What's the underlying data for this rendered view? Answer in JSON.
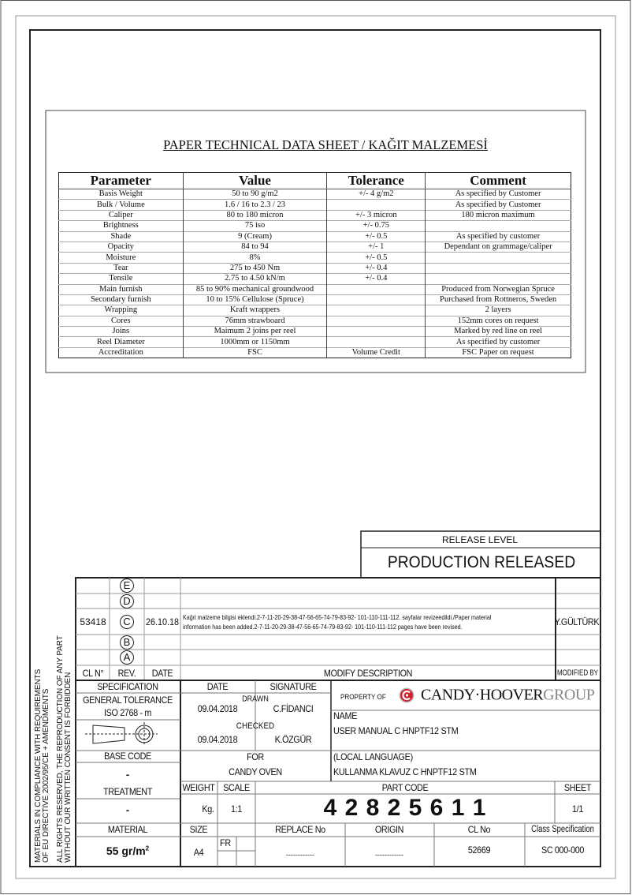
{
  "sheet": {
    "title": "PAPER TECHNICAL DATA SHEET / KAĞIT MALZEMESİ",
    "columns": [
      "Parameter",
      "Value",
      "Tolerance",
      "Comment"
    ],
    "rows": [
      [
        "Basis Weight",
        "50 to 90 g/m2",
        "+/- 4 g/m2",
        "As specified by Customer"
      ],
      [
        "Bulk / Volume",
        "1.6 / 16 to 2.3 / 23",
        "",
        "As specified by Customer"
      ],
      [
        "Caliper",
        "80 to 180 micron",
        "+/- 3 micron",
        "180 micron maximum"
      ],
      [
        "Brightness",
        "75 iso",
        "+/- 0.75",
        ""
      ],
      [
        "Shade",
        "9 (Cream)",
        "+/- 0.5",
        "As specified by customer"
      ],
      [
        "Opacity",
        "84 to 94",
        "+/- 1",
        "Dependant on grammage/caliper"
      ],
      [
        "Moisture",
        "8%",
        "+/- 0.5",
        ""
      ],
      [
        "Tear",
        "275 to 450 Nm",
        "+/- 0.4",
        ""
      ],
      [
        "Tensile",
        "2.75 to 4.50 kN/m",
        "+/- 0.4",
        ""
      ],
      [
        "Main furnish",
        "85 to 90% mechanical groundwood",
        "",
        "Produced from Norwegian Spruce"
      ],
      [
        "Secondary furnish",
        "10 to 15% Cellulose (Spruce)",
        "",
        "Purchased from Rottneros, Sweden"
      ],
      [
        "Wrapping",
        "Kraft wrappers",
        "",
        "2 layers"
      ],
      [
        "Cores",
        "76mm strawboard",
        "",
        "152mm cores on request"
      ],
      [
        "Joins",
        "Maimum 2 joins per reel",
        "",
        "Marked by red line on reel"
      ],
      [
        "Reel Diameter",
        "1000mm or 1150mm",
        "",
        "As specified by customer"
      ],
      [
        "Accreditation",
        "FSC",
        "Volume Credit",
        "FSC Paper on request"
      ]
    ]
  },
  "release": {
    "label": "RELEASE LEVEL",
    "value": "PRODUCTION RELEASED"
  },
  "revisions": {
    "letters": [
      "E",
      "D",
      "C",
      "B",
      "A"
    ],
    "entry": {
      "cl_no": "53418",
      "date": "26.10.18",
      "description_line1": "Kağıt malzeme bilgisi eklendi.2-7-11-20-29-38-47-56-65-74-79-83-92- 101-110-111-112. sayfalar revizeedildi./Paper material",
      "description_line2": "information has been added.2-7-11-20-29-38-47-56-65-74-79-83-92- 101-110-111-112 pages have been revised.",
      "modified_by": "Y.GÜLTÜRK"
    },
    "headers": {
      "cl_no": "CL N°",
      "rev": "REV.",
      "date": "DATE",
      "description": "MODIFY DESCRIPTION",
      "modified_by": "MODIFIED BY"
    }
  },
  "title_block": {
    "specification_label": "SPECIFICATION",
    "general_tolerance": "GENERAL TOLERANCE",
    "iso": "ISO 2768 - m",
    "base_code_label": "BASE CODE",
    "base_code": "-",
    "treatment_label": "TREATMENT",
    "treatment": "-",
    "material_label": "MATERIAL",
    "material": "55 gr/m",
    "material_sup": "2",
    "date_label": "DATE",
    "signature_label": "SIGNATURE",
    "drawn_label": "DRAWN",
    "drawn_date": "09.04.2018",
    "drawn_by": "C.FİDANCI",
    "checked_label": "CHECKED",
    "checked_date": "09.04.2018",
    "checked_by": "K.ÖZGÜR",
    "for_label": "FOR",
    "for_value": "CANDY OVEN",
    "property_of": "PROPERTY OF",
    "brand": "CANDY·HOOVER",
    "brand_group": "GROUP",
    "name_label": "NAME",
    "name": "USER MANUAL C HNPTF12 STM",
    "local_label": "(LOCAL LANGUAGE)",
    "local_name": "KULLANMA KLAVUZ C HNPTF12 STM",
    "weight_label": "WEIGHT",
    "weight": "Kg.",
    "scale_label": "SCALE",
    "scale": "1:1",
    "part_code_label": "PART CODE",
    "part_code": "4 2 8 2 5 6 1 1",
    "sheet_label": "SHEET",
    "sheet": "1/1",
    "size_label": "SIZE",
    "size": "A4",
    "fr": "FR",
    "replace_label": "REPLACE No",
    "replace": "------------",
    "origin_label": "ORIGIN",
    "origin": "------------",
    "cl_label": "CL No",
    "cl": "52669",
    "class_label": "Class Specification",
    "class": "SC 000-000",
    "brand_color": "#d0202a"
  },
  "side_notes": [
    "MATERIALS IN COMPLIANCE WITH REQUIREMENTS",
    "OF EU DIRECTIVE 2002/95/CE + AMENDMENTS",
    "ALL RIGHTS RESERVED, THE REPRODUCTION OF ANY PART",
    "WITHOUT OUR WRITTEN CONSENT IS FORBIDDEN"
  ]
}
